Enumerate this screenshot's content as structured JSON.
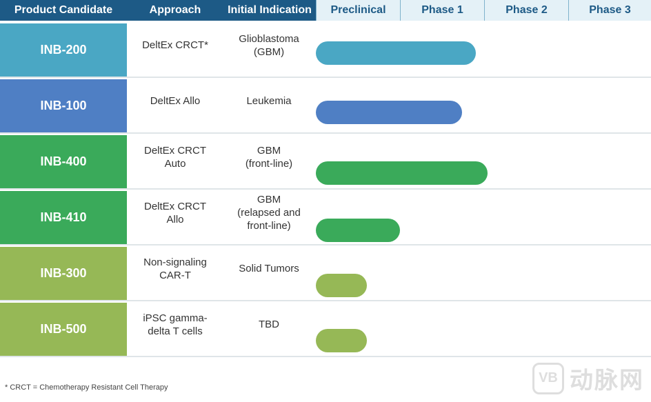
{
  "headers": {
    "candidate": "Product Candidate",
    "approach": "Approach",
    "indication": "Initial Indication",
    "phases": [
      "Preclinical",
      "Phase 1",
      "Phase 2",
      "Phase 3"
    ]
  },
  "chart_data": {
    "type": "bar",
    "orientation": "horizontal",
    "categories": [
      "INB-200",
      "INB-100",
      "INB-400",
      "INB-410",
      "INB-300",
      "INB-500"
    ],
    "rows": [
      {
        "candidate": "INB-200",
        "approach": "DeltEx CRCT*",
        "indication": "Glioblastoma\n(GBM)",
        "progress": 1.9,
        "color": "#4aa7c4"
      },
      {
        "candidate": "INB-100",
        "approach": "DeltEx Allo",
        "indication": "Leukemia",
        "progress": 1.74,
        "color": "#4f7fc4"
      },
      {
        "candidate": "INB-400",
        "approach": "DeltEx CRCT\nAuto",
        "indication": "GBM\n(front-line)",
        "progress": 2.04,
        "color": "#3aaa5a"
      },
      {
        "candidate": "INB-410",
        "approach": "DeltEx CRCT\nAllo",
        "indication": "GBM\n(relapsed and\nfront-line)",
        "progress": 1.0,
        "color": "#3aaa5a"
      },
      {
        "candidate": "INB-300",
        "approach": "Non-signaling\nCAR-T",
        "indication": "Solid Tumors",
        "progress": 0.61,
        "color": "#96b856"
      },
      {
        "candidate": "INB-500",
        "approach": "iPSC gamma-\ndelta T cells",
        "indication": "TBD",
        "progress": 0.61,
        "color": "#96b856"
      }
    ],
    "x_unit": "development phase",
    "xlim": [
      0,
      4
    ]
  },
  "footnote": "* CRCT = Chemotherapy Resistant Cell Therapy",
  "watermark": {
    "icon_text": "VB",
    "text": "动脉网"
  }
}
